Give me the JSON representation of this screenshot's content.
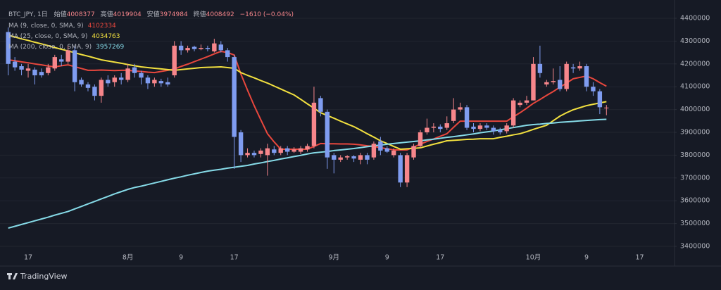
{
  "chart_data": {
    "type": "candlestick",
    "title": "BTC_JPY, 1日",
    "ohlc_labels": [
      "始値",
      "高値",
      "安値",
      "終値"
    ],
    "change": "−1610 (−0.04%)",
    "up_color": "#f7868b",
    "down_color": "#7f9cf0",
    "grid": true,
    "categories": [
      null,
      null,
      null,
      "17",
      null,
      null,
      null,
      null,
      null,
      null,
      null,
      null,
      null,
      null,
      null,
      null,
      null,
      null,
      "8月",
      null,
      null,
      null,
      null,
      null,
      null,
      null,
      "9",
      null,
      null,
      null,
      null,
      null,
      null,
      null,
      "17",
      null,
      null,
      null,
      null,
      null,
      null,
      null,
      null,
      null,
      null,
      null,
      null,
      null,
      null,
      "9月",
      null,
      null,
      null,
      null,
      null,
      null,
      null,
      "9",
      null,
      null,
      null,
      null,
      null,
      null,
      null,
      "17",
      null,
      null,
      null,
      null,
      null,
      null,
      null,
      null,
      null,
      null,
      null,
      null,
      null,
      "10月",
      null,
      null,
      null,
      null,
      null,
      null,
      null,
      "9",
      null,
      null,
      null,
      null,
      null,
      null,
      null,
      "17"
    ],
    "candles": {
      "open": [
        4340000,
        4210000,
        4190000,
        4170000,
        4175000,
        4165000,
        4160000,
        4180000,
        4220000,
        4210000,
        4260000,
        4130000,
        4110000,
        4100000,
        4060000,
        4130000,
        4120000,
        4140000,
        4130000,
        4185000,
        4160000,
        4140000,
        4115000,
        4125000,
        4120000,
        4150000,
        4280000,
        4260000,
        4275000,
        4265000,
        4270000,
        4255000,
        4285000,
        4260000,
        4230000,
        3900000,
        3800000,
        3810000,
        3805000,
        3800000,
        3825000,
        3810000,
        3830000,
        3815000,
        3815000,
        3825000,
        3840000,
        4050000,
        3990000,
        3800000,
        3780000,
        3790000,
        3795000,
        3780000,
        3800000,
        3790000,
        3860000,
        3830000,
        3800000,
        3800000,
        3680000,
        3790000,
        3840000,
        3900000,
        3920000,
        3925000,
        3920000,
        3950000,
        4000000,
        4010000,
        3925000,
        3915000,
        3930000,
        3920000,
        3910000,
        3905000,
        3930000,
        4020000,
        4030000,
        4040000,
        4200000,
        4110000,
        4120000,
        4130000,
        4090000,
        4185000,
        4180000,
        4190000,
        4100000,
        4080000,
        4008377,
        null,
        null,
        null,
        null,
        null
      ],
      "high": [
        4360000,
        4230000,
        4200000,
        4200000,
        4185000,
        4180000,
        4200000,
        4240000,
        4240000,
        4280000,
        4280000,
        4140000,
        4120000,
        4110000,
        4140000,
        4150000,
        4150000,
        4160000,
        4200000,
        4200000,
        4170000,
        4150000,
        4140000,
        4135000,
        4140000,
        4300000,
        4300000,
        4280000,
        4280000,
        4285000,
        4280000,
        4310000,
        4300000,
        4270000,
        4240000,
        3910000,
        3830000,
        3820000,
        3830000,
        3850000,
        3840000,
        3840000,
        3840000,
        3835000,
        3840000,
        3850000,
        4100000,
        4060000,
        4000000,
        3810000,
        3800000,
        3800000,
        3800000,
        3810000,
        3810000,
        3860000,
        3880000,
        3840000,
        3830000,
        3810000,
        3810000,
        3850000,
        3910000,
        3960000,
        3940000,
        3935000,
        3970000,
        4050000,
        4030000,
        4020000,
        3940000,
        3940000,
        3940000,
        3930000,
        3920000,
        3940000,
        4050000,
        4040000,
        4060000,
        4230000,
        4280000,
        4130000,
        4180000,
        4190000,
        4210000,
        4200000,
        4210000,
        4200000,
        4120000,
        4090000,
        4019904,
        null,
        null,
        null,
        null,
        null
      ],
      "low": [
        4150000,
        4170000,
        4150000,
        4140000,
        4110000,
        4140000,
        4150000,
        4170000,
        4190000,
        4200000,
        4080000,
        4100000,
        4080000,
        4040000,
        4030000,
        4100000,
        4100000,
        4110000,
        4120000,
        4140000,
        4110000,
        4090000,
        4100000,
        4100000,
        4100000,
        4140000,
        4240000,
        4250000,
        4255000,
        4260000,
        4255000,
        4250000,
        4250000,
        4210000,
        3740000,
        3770000,
        3790000,
        3790000,
        3790000,
        3710000,
        3800000,
        3800000,
        3800000,
        3810000,
        3805000,
        3815000,
        3830000,
        3970000,
        3740000,
        3720000,
        3770000,
        3780000,
        3770000,
        3760000,
        3760000,
        3780000,
        3800000,
        3810000,
        3790000,
        3660000,
        3660000,
        3780000,
        3830000,
        3890000,
        3900000,
        3900000,
        3910000,
        3940000,
        3990000,
        3910000,
        3900000,
        3905000,
        3910000,
        3890000,
        3890000,
        3895000,
        3920000,
        4010000,
        4020000,
        4040000,
        4140000,
        4100000,
        4110000,
        4080000,
        4080000,
        4160000,
        4170000,
        4080000,
        4060000,
        3980000,
        3974984,
        null,
        null,
        null,
        null,
        null
      ],
      "close": [
        4200000,
        4185000,
        4175000,
        4180000,
        4150000,
        4150000,
        4185000,
        4230000,
        4210000,
        4260000,
        4120000,
        4110000,
        4095000,
        4060000,
        4130000,
        4115000,
        4140000,
        4130000,
        4180000,
        4160000,
        4140000,
        4115000,
        4130000,
        4115000,
        4110000,
        4280000,
        4260000,
        4270000,
        4265000,
        4270000,
        4265000,
        4290000,
        4260000,
        4230000,
        3880000,
        3800000,
        3810000,
        3800000,
        3820000,
        3830000,
        3810000,
        3830000,
        3815000,
        3825000,
        3830000,
        3840000,
        4030000,
        3990000,
        3790000,
        3780000,
        3790000,
        3795000,
        3785000,
        3800000,
        3780000,
        3850000,
        3820000,
        3815000,
        3820000,
        3680000,
        3800000,
        3840000,
        3900000,
        3920000,
        3925000,
        3915000,
        3940000,
        4000000,
        4010000,
        3920000,
        3915000,
        3930000,
        3920000,
        3905000,
        3900000,
        3930000,
        4040000,
        4030000,
        4040000,
        4200000,
        4160000,
        4120000,
        4125000,
        4090000,
        4200000,
        4180000,
        4190000,
        4100000,
        4080000,
        4010102,
        4008492,
        null,
        null,
        null,
        null,
        null
      ]
    },
    "series": [
      {
        "name": "MA (9, close, 0, SMA, 9)",
        "color": "#e8473d",
        "values": [
          4218000,
          4214000,
          4209000,
          4205000,
          4200000,
          4196000,
          4191000,
          4187000,
          4192000,
          4196000,
          4188000,
          4180000,
          4172000,
          4172000,
          4173000,
          4172000,
          4171000,
          4172000,
          4172000,
          4169000,
          4167000,
          4164000,
          4162000,
          4167000,
          4172000,
          4178000,
          4189000,
          4199000,
          4210000,
          4221000,
          4232000,
          4244000,
          4255000,
          4250000,
          4239000,
          4156000,
          4085000,
          4017000,
          3955000,
          3894000,
          3858000,
          3826000,
          3826000,
          3826000,
          3826000,
          3826000,
          3838000,
          3851000,
          3850000,
          3850000,
          3849000,
          3849000,
          3848000,
          3845000,
          3841000,
          3838000,
          3833000,
          3828000,
          3823000,
          3823000,
          3823000,
          3835000,
          3848000,
          3860000,
          3871000,
          3883000,
          3894000,
          3922000,
          3949000,
          3949000,
          3949000,
          3949000,
          3949000,
          3949000,
          3949000,
          3949000,
          3968000,
          3986000,
          4006000,
          4027000,
          4044000,
          4062000,
          4079000,
          4098000,
          4116000,
          4135000,
          4141000,
          4147000,
          4135000,
          4118000,
          4102334,
          null,
          null,
          null,
          null,
          null
        ]
      },
      {
        "name": "MA (25, close, 0, SMA, 9)",
        "color": "#f2e03f",
        "values": [
          4326000,
          4318000,
          4310000,
          4303000,
          4295000,
          4288000,
          4280000,
          4272000,
          4264000,
          4257000,
          4249000,
          4241000,
          4234000,
          4226000,
          4218000,
          4213000,
          4208000,
          4203000,
          4197000,
          4192000,
          4187000,
          4184000,
          4181000,
          4178000,
          4175000,
          4172000,
          4175000,
          4178000,
          4181000,
          4184000,
          4185000,
          4186000,
          4187000,
          4184000,
          4181000,
          4162000,
          4150000,
          4139000,
          4127000,
          4116000,
          4103000,
          4090000,
          4077000,
          4064000,
          4045000,
          4025000,
          4006000,
          3986000,
          3974000,
          3962000,
          3949000,
          3937000,
          3925000,
          3910000,
          3894000,
          3879000,
          3863000,
          3851000,
          3838000,
          3826000,
          3828000,
          3830000,
          3832000,
          3840000,
          3848000,
          3855000,
          3863000,
          3865000,
          3867000,
          3869000,
          3870000,
          3872000,
          3872000,
          3872000,
          3878000,
          3883000,
          3889000,
          3894000,
          3903000,
          3913000,
          3922000,
          3931000,
          3951000,
          3971000,
          3986000,
          3999000,
          4008000,
          4017000,
          4023000,
          4029000,
          4034763,
          null,
          null,
          null,
          null,
          null
        ]
      },
      {
        "name": "MA (200, close, 0, SMA, 9)",
        "color": "#86dbe8",
        "values": [
          3480000,
          3488000,
          3496000,
          3504000,
          3512000,
          3520000,
          3528000,
          3537000,
          3545000,
          3553000,
          3564000,
          3575000,
          3586000,
          3597000,
          3608000,
          3619000,
          3630000,
          3640000,
          3650000,
          3658000,
          3664000,
          3671000,
          3678000,
          3685000,
          3692000,
          3699000,
          3705000,
          3712000,
          3718000,
          3724000,
          3730000,
          3734000,
          3738000,
          3743000,
          3747000,
          3751000,
          3755000,
          3761000,
          3766000,
          3772000,
          3777000,
          3783000,
          3788000,
          3794000,
          3799000,
          3805000,
          3810000,
          3813000,
          3816000,
          3820000,
          3823000,
          3826000,
          3829000,
          3833000,
          3837000,
          3841000,
          3844000,
          3848000,
          3851000,
          3854000,
          3857000,
          3860000,
          3863000,
          3867000,
          3870000,
          3874000,
          3878000,
          3881000,
          3885000,
          3889000,
          3893000,
          3898000,
          3902000,
          3906000,
          3911000,
          3916000,
          3921000,
          3926000,
          3931000,
          3934000,
          3936000,
          3939000,
          3941000,
          3944000,
          3946000,
          3948000,
          3950000,
          3952000,
          3954000,
          3956000,
          3957269,
          null,
          null,
          null,
          null,
          null
        ]
      }
    ],
    "ylim": [
      3381500,
      4449400
    ],
    "yticks": [
      3400000,
      3500000,
      3600000,
      3700000,
      3800000,
      3900000,
      4000000,
      4100000,
      4200000,
      4300000,
      4400000
    ],
    "footer": "TradingView"
  }
}
